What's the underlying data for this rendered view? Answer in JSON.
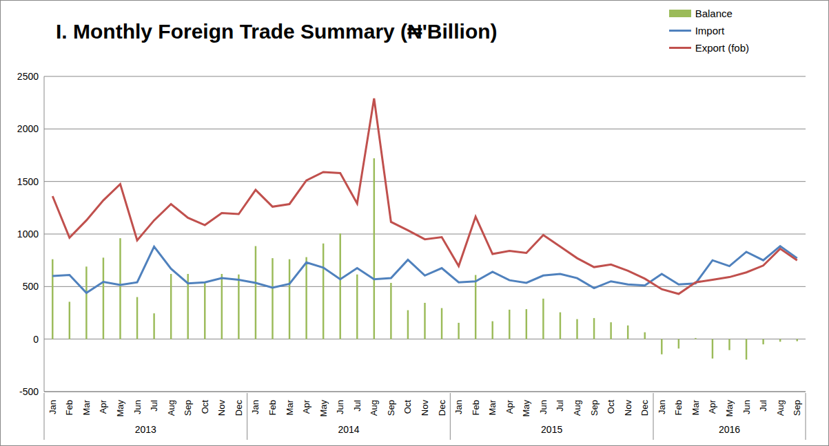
{
  "chart_data": {
    "type": "bar",
    "title": "I. Monthly Foreign Trade Summary (₦'Billion)",
    "categories": [
      "Jan",
      "Feb",
      "Mar",
      "Apr",
      "May",
      "Jun",
      "Jul",
      "Aug",
      "Sep",
      "Oct",
      "Nov",
      "Dec",
      "Jan",
      "Feb",
      "Mar",
      "Apr",
      "May",
      "Jun",
      "Jul",
      "Aug",
      "Sep",
      "Oct",
      "Nov",
      "Dec",
      "Jan",
      "Feb",
      "Mar",
      "Apr",
      "May",
      "Jun",
      "Jul",
      "Aug",
      "Sep",
      "Oct",
      "Nov",
      "Dec",
      "Jan",
      "Feb",
      "Mar",
      "Apr",
      "May",
      "Jun",
      "Jul",
      "Aug",
      "Sep"
    ],
    "x_groups": [
      {
        "label": "2013",
        "span": 12
      },
      {
        "label": "2014",
        "span": 12
      },
      {
        "label": "2015",
        "span": 12
      },
      {
        "label": "2016",
        "span": 9
      }
    ],
    "series": [
      {
        "name": "Balance",
        "type": "bar",
        "color": "#9bbb59",
        "values": [
          760,
          355,
          690,
          775,
          960,
          400,
          245,
          620,
          620,
          545,
          620,
          615,
          885,
          770,
          760,
          780,
          910,
          1005,
          615,
          1720,
          535,
          275,
          345,
          295,
          155,
          610,
          170,
          280,
          285,
          385,
          255,
          190,
          200,
          160,
          130,
          65,
          -145,
          -90,
          10,
          -185,
          -105,
          -195,
          -50,
          -25,
          -20
        ]
      },
      {
        "name": "Import",
        "type": "line",
        "color": "#4f81bd",
        "values": [
          600,
          610,
          440,
          545,
          515,
          540,
          880,
          670,
          530,
          540,
          580,
          565,
          535,
          490,
          525,
          730,
          680,
          570,
          675,
          570,
          580,
          755,
          605,
          675,
          540,
          550,
          640,
          560,
          535,
          605,
          620,
          580,
          485,
          550,
          520,
          510,
          620,
          520,
          530,
          750,
          695,
          830,
          750,
          885,
          770
        ]
      },
      {
        "name": "Export (fob)",
        "type": "line",
        "color": "#c0504d",
        "values": [
          1360,
          965,
          1130,
          1320,
          1475,
          940,
          1130,
          1285,
          1155,
          1085,
          1200,
          1190,
          1420,
          1260,
          1285,
          1510,
          1590,
          1580,
          1290,
          2290,
          1115,
          1035,
          950,
          970,
          695,
          1165,
          810,
          840,
          820,
          990,
          880,
          770,
          685,
          710,
          650,
          575,
          475,
          430,
          540,
          565,
          590,
          635,
          700,
          860,
          750
        ]
      }
    ],
    "ylim": [
      -500,
      2500
    ],
    "yticks": [
      -500,
      0,
      500,
      1000,
      1500,
      2000,
      2500
    ],
    "grid": true,
    "legend": "top-right"
  }
}
